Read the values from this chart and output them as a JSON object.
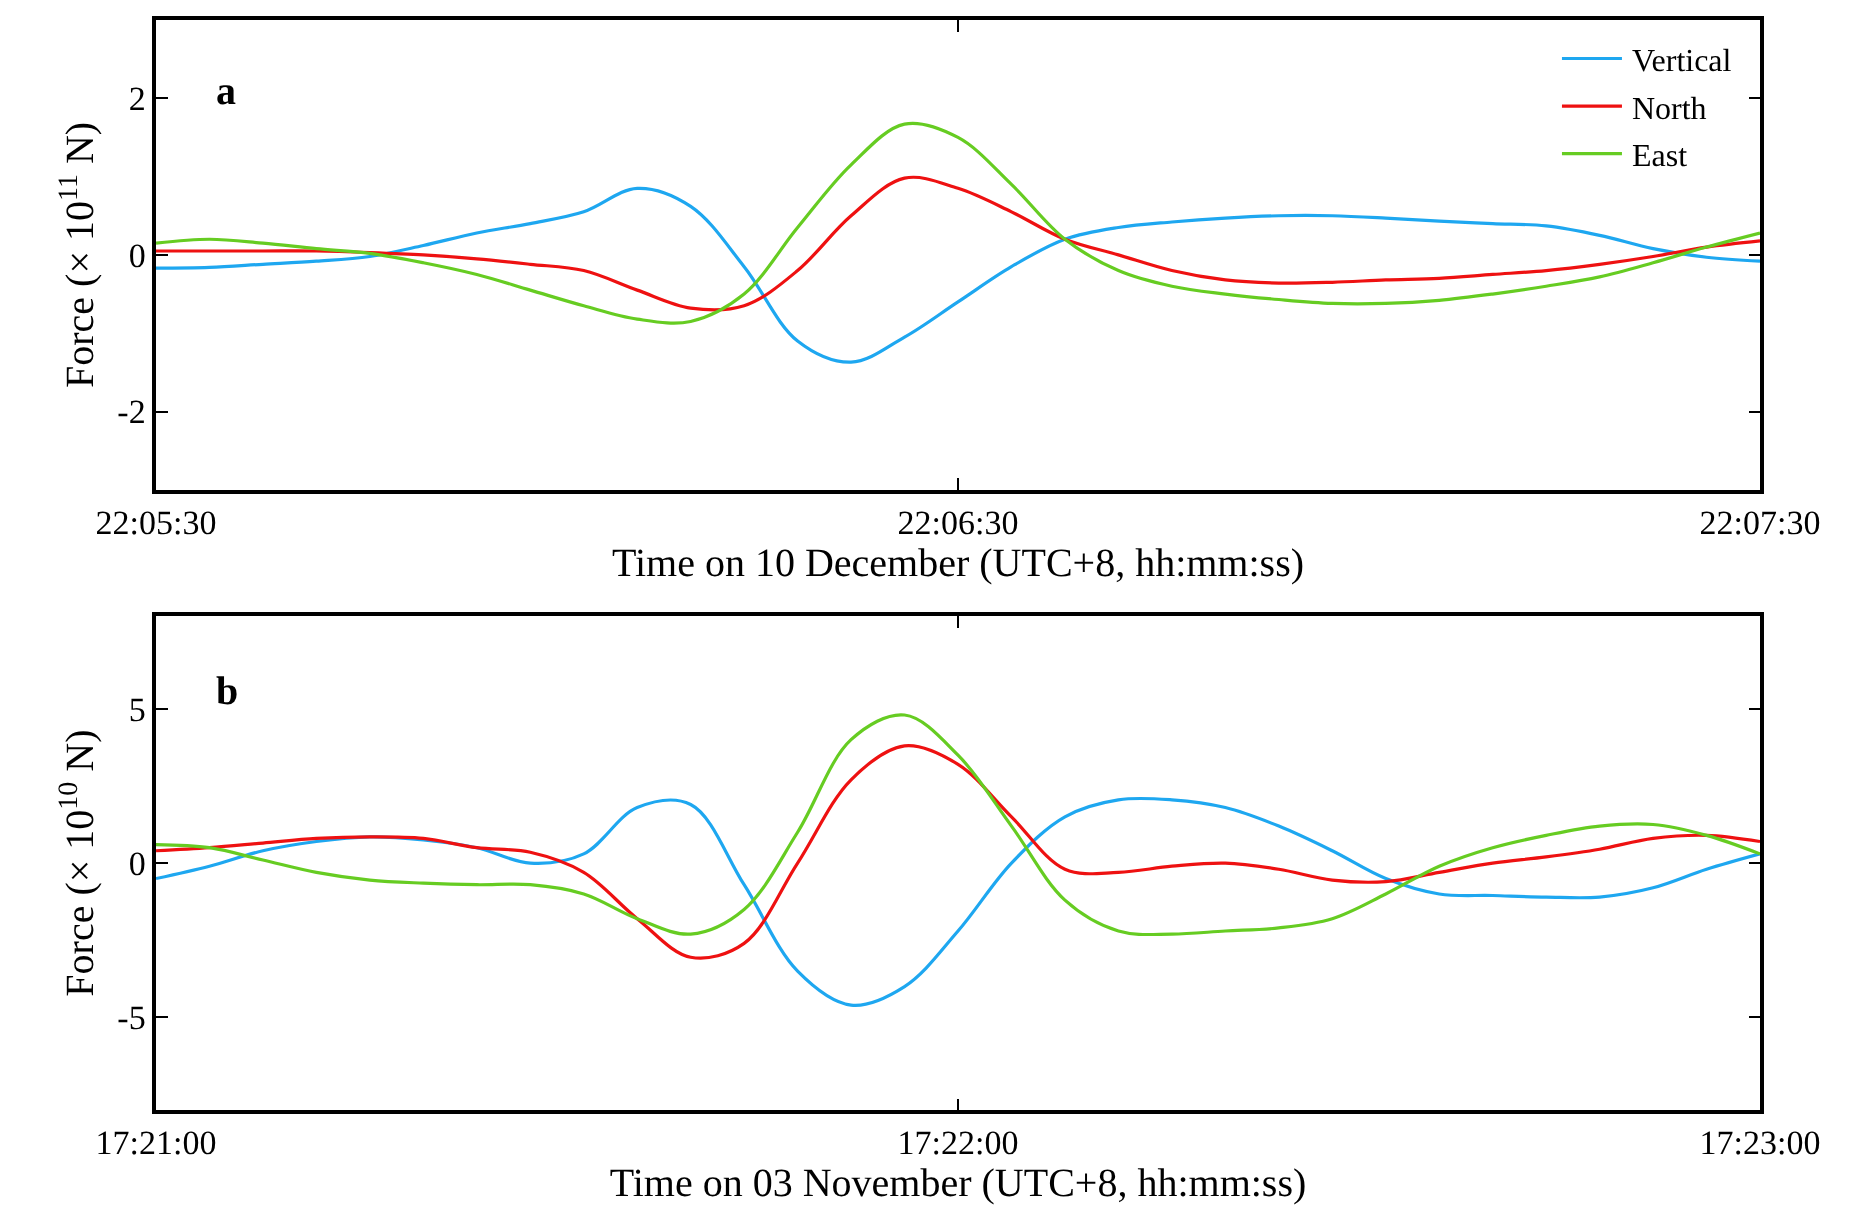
{
  "chart_data": [
    {
      "type": "line",
      "xlabel": "Time on 10 December (UTC+8, hh:mm:ss)",
      "ylabel": "Force (× 10$^{11}$ N)",
      "annotations": [
        "a"
      ],
      "legend": "top right",
      "marker": "none",
      "line_style": "solid",
      "x": [
        22.091667,
        22.092778,
        22.093889,
        22.095,
        22.096111,
        22.097222,
        22.098333,
        22.099444,
        22.100556,
        22.101667,
        22.102778,
        22.103889,
        22.105,
        22.106111,
        22.107222,
        22.108333,
        22.109444,
        22.110556,
        22.111667,
        22.112778,
        22.113889,
        22.115,
        22.116111,
        22.117222,
        22.118333,
        22.119444,
        22.120556,
        22.121667,
        22.122778,
        22.123889,
        22.125
      ],
      "xlim": [
        22.091667,
        22.125
      ],
      "xticks": [
        {
          "value": 22.091667,
          "label": "22:05:30"
        },
        {
          "value": 22.108333,
          "label": "22:06:30"
        },
        {
          "value": 22.125,
          "label": "22:07:30"
        }
      ],
      "ylim": [
        -3,
        3
      ],
      "yticks": [
        -2,
        0,
        2
      ],
      "series": [
        {
          "name": "Vertical",
          "color": "#1ea7f0",
          "values": [
            -0.17,
            -0.16,
            -0.12,
            -0.08,
            -0.02,
            0.12,
            0.28,
            0.4,
            0.55,
            0.85,
            0.62,
            -0.15,
            -1.1,
            -1.37,
            -1.05,
            -0.6,
            -0.15,
            0.2,
            0.35,
            0.42,
            0.47,
            0.5,
            0.5,
            0.47,
            0.43,
            0.4,
            0.37,
            0.25,
            0.08,
            -0.03,
            -0.08
          ]
        },
        {
          "name": "North",
          "color": "#ee1111",
          "values": [
            0.05,
            0.05,
            0.05,
            0.05,
            0.03,
            0.0,
            -0.05,
            -0.12,
            -0.2,
            -0.45,
            -0.68,
            -0.65,
            -0.2,
            0.5,
            0.98,
            0.85,
            0.55,
            0.2,
            0.0,
            -0.2,
            -0.32,
            -0.36,
            -0.35,
            -0.32,
            -0.3,
            -0.25,
            -0.2,
            -0.12,
            -0.02,
            0.1,
            0.18
          ]
        },
        {
          "name": "East",
          "color": "#66cc22",
          "values": [
            0.15,
            0.2,
            0.15,
            0.08,
            0.02,
            -0.1,
            -0.25,
            -0.45,
            -0.65,
            -0.82,
            -0.85,
            -0.5,
            0.35,
            1.15,
            1.67,
            1.5,
            0.9,
            0.2,
            -0.2,
            -0.4,
            -0.5,
            -0.57,
            -0.62,
            -0.62,
            -0.58,
            -0.5,
            -0.4,
            -0.28,
            -0.1,
            0.1,
            0.28
          ]
        }
      ]
    },
    {
      "type": "line",
      "xlabel": "Time on 03 November (UTC+8, hh:mm:ss)",
      "ylabel": "Force (× 10$^{10}$ N)",
      "annotations": [
        "b"
      ],
      "marker": "none",
      "line_style": "solid",
      "x": [
        17.35,
        17.351111,
        17.352222,
        17.353333,
        17.354444,
        17.355556,
        17.356667,
        17.357778,
        17.358889,
        17.36,
        17.361111,
        17.362222,
        17.363333,
        17.364444,
        17.365556,
        17.366667,
        17.367778,
        17.368889,
        17.37,
        17.371111,
        17.372222,
        17.373333,
        17.374444,
        17.375556,
        17.376667,
        17.377778,
        17.378889,
        17.38,
        17.381111,
        17.382222,
        17.383333
      ],
      "xlim": [
        17.35,
        17.383333
      ],
      "xticks": [
        {
          "value": 17.35,
          "label": "17:21:00"
        },
        {
          "value": 17.366667,
          "label": "17:22:00"
        },
        {
          "value": 17.383333,
          "label": "17:23:00"
        }
      ],
      "ylim": [
        -8,
        8
      ],
      "yticks": [
        -5,
        0,
        5
      ],
      "series": [
        {
          "color": "#1ea7f0",
          "values": [
            -0.5,
            -0.1,
            0.4,
            0.7,
            0.85,
            0.75,
            0.5,
            0.0,
            0.3,
            1.8,
            1.9,
            -0.7,
            -3.5,
            -4.6,
            -4.0,
            -2.2,
            0.0,
            1.5,
            2.05,
            2.05,
            1.8,
            1.2,
            0.4,
            -0.5,
            -1.0,
            -1.05,
            -1.1,
            -1.1,
            -0.8,
            -0.2,
            0.3
          ]
        },
        {
          "color": "#ee1111",
          "values": [
            0.4,
            0.5,
            0.65,
            0.8,
            0.85,
            0.8,
            0.5,
            0.35,
            -0.3,
            -1.8,
            -3.05,
            -2.6,
            0.0,
            2.7,
            3.8,
            3.2,
            1.5,
            -0.2,
            -0.3,
            -0.1,
            0.0,
            -0.2,
            -0.55,
            -0.6,
            -0.3,
            0.0,
            0.2,
            0.45,
            0.8,
            0.9,
            0.7
          ]
        },
        {
          "color": "#66cc22",
          "values": [
            0.6,
            0.5,
            0.1,
            -0.3,
            -0.55,
            -0.65,
            -0.7,
            -0.7,
            -1.0,
            -1.8,
            -2.3,
            -1.5,
            1.0,
            4.0,
            4.8,
            3.5,
            1.2,
            -1.2,
            -2.2,
            -2.3,
            -2.2,
            -2.1,
            -1.8,
            -1.0,
            -0.1,
            0.5,
            0.9,
            1.2,
            1.25,
            0.9,
            0.3
          ]
        }
      ]
    }
  ]
}
